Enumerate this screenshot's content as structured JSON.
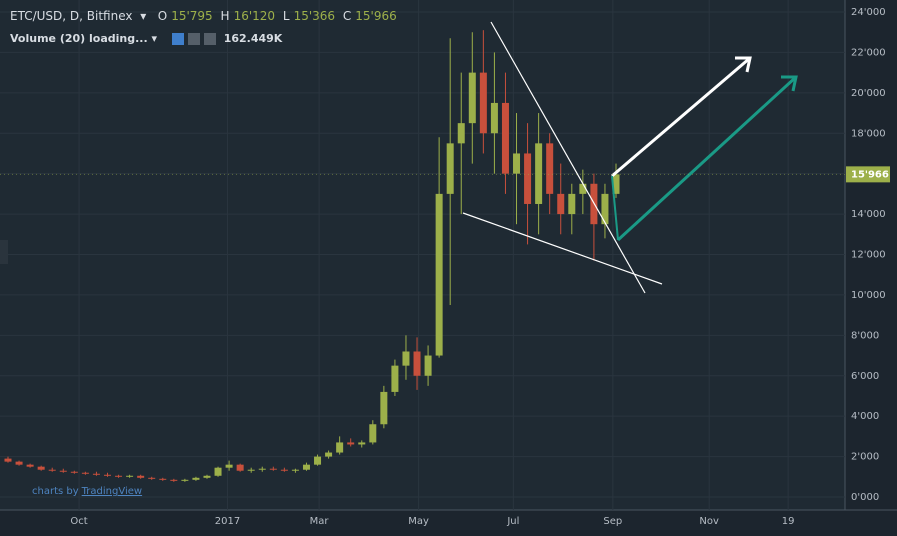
{
  "chart_data": {
    "type": "candlestick",
    "title": "ETC/USD, D, Bitfinex",
    "quote": [
      {
        "key": "O",
        "value": 15795,
        "label": "15'795"
      },
      {
        "key": "H",
        "value": 16120,
        "label": "16'120"
      },
      {
        "key": "L",
        "value": 15366,
        "label": "15'366"
      },
      {
        "key": "C",
        "value": 15966,
        "label": "15'966"
      }
    ],
    "indicator": {
      "name": "Volume (20) loading...",
      "value": 162449,
      "label": "162.449K"
    },
    "last_price": {
      "value": 15966,
      "label": "15'966"
    },
    "credit": {
      "prefix": "charts by",
      "link": "TradingView"
    },
    "up_color": "#9db04a",
    "down_color": "#c8503c",
    "grid": true,
    "xlim": [
      0,
      530
    ],
    "xticks": [
      {
        "value": 45,
        "label": "Oct"
      },
      {
        "value": 139,
        "label": "2017"
      },
      {
        "value": 197,
        "label": "Mar"
      },
      {
        "value": 260,
        "label": "May"
      },
      {
        "value": 320,
        "label": "Jul"
      },
      {
        "value": 383,
        "label": "Sep"
      },
      {
        "value": 444,
        "label": "Nov"
      },
      {
        "value": 494,
        "label": "19"
      }
    ],
    "ylim": [
      0,
      24000
    ],
    "yticks": [
      {
        "value": 0,
        "label": "0'000"
      },
      {
        "value": 2000,
        "label": "2'000"
      },
      {
        "value": 4000,
        "label": "4'000"
      },
      {
        "value": 6000,
        "label": "6'000"
      },
      {
        "value": 8000,
        "label": "8'000"
      },
      {
        "value": 10000,
        "label": "10'000"
      },
      {
        "value": 12000,
        "label": "12'000"
      },
      {
        "value": 14000,
        "label": "14'000"
      },
      {
        "value": 16000,
        "label": "16'000"
      },
      {
        "value": 18000,
        "label": "18'000"
      },
      {
        "value": 20000,
        "label": "20'000"
      },
      {
        "value": 22000,
        "label": "22'000"
      },
      {
        "value": 24000,
        "label": "24'000"
      }
    ],
    "x": [
      0,
      7,
      14,
      21,
      28,
      35,
      42,
      49,
      56,
      63,
      70,
      77,
      84,
      91,
      98,
      105,
      112,
      119,
      126,
      133,
      140,
      147,
      154,
      161,
      168,
      175,
      182,
      189,
      196,
      203,
      210,
      217,
      224,
      231,
      238,
      245,
      252,
      259,
      266,
      273,
      280,
      287,
      294,
      301,
      308,
      315,
      322,
      329,
      336,
      343,
      350,
      357,
      364,
      371,
      378,
      385
    ],
    "open": [
      1900,
      1750,
      1600,
      1500,
      1350,
      1300,
      1250,
      1200,
      1150,
      1100,
      1050,
      1000,
      1050,
      950,
      900,
      850,
      800,
      850,
      950,
      1050,
      1450,
      1600,
      1300,
      1350,
      1400,
      1350,
      1300,
      1350,
      1600,
      2000,
      2200,
      2700,
      2600,
      2700,
      3600,
      5200,
      6500,
      7200,
      6000,
      7000,
      15000,
      17500,
      18500,
      21000,
      18000,
      19500,
      16000,
      17000,
      14500,
      17500,
      15000,
      14000,
      15000,
      15500,
      13500,
      15000
    ],
    "high": [
      2000,
      1800,
      1650,
      1550,
      1450,
      1400,
      1300,
      1250,
      1250,
      1200,
      1100,
      1100,
      1100,
      1000,
      950,
      900,
      900,
      1000,
      1100,
      1500,
      1800,
      1650,
      1450,
      1500,
      1500,
      1450,
      1400,
      1700,
      2100,
      2300,
      3000,
      2900,
      2800,
      3800,
      5500,
      6800,
      8000,
      7900,
      7500,
      17800,
      22700,
      21000,
      23000,
      23100,
      22000,
      21000,
      19000,
      18500,
      19000,
      18000,
      16500,
      15500,
      16200,
      16000,
      15500,
      16500
    ],
    "low": [
      1700,
      1550,
      1450,
      1300,
      1250,
      1200,
      1150,
      1100,
      1050,
      1000,
      950,
      950,
      900,
      850,
      800,
      750,
      750,
      800,
      900,
      1000,
      1300,
      1250,
      1200,
      1250,
      1300,
      1250,
      1200,
      1300,
      1550,
      1900,
      2100,
      2500,
      2450,
      2600,
      3400,
      5000,
      5800,
      5300,
      5500,
      6900,
      9500,
      14000,
      16500,
      17000,
      16000,
      15000,
      13500,
      12500,
      13000,
      14000,
      13000,
      13000,
      14000,
      11700,
      12800,
      14800
    ],
    "close": [
      1750,
      1600,
      1500,
      1350,
      1300,
      1250,
      1200,
      1150,
      1100,
      1050,
      1000,
      1050,
      950,
      900,
      850,
      800,
      850,
      950,
      1050,
      1450,
      1600,
      1300,
      1350,
      1400,
      1350,
      1300,
      1350,
      1600,
      2000,
      2200,
      2700,
      2600,
      2700,
      3600,
      5200,
      6500,
      7200,
      6000,
      7000,
      15000,
      17500,
      18500,
      21000,
      18000,
      19500,
      16000,
      17000,
      14500,
      17500,
      15000,
      14000,
      15000,
      15500,
      13500,
      15000,
      15966
    ]
  }
}
